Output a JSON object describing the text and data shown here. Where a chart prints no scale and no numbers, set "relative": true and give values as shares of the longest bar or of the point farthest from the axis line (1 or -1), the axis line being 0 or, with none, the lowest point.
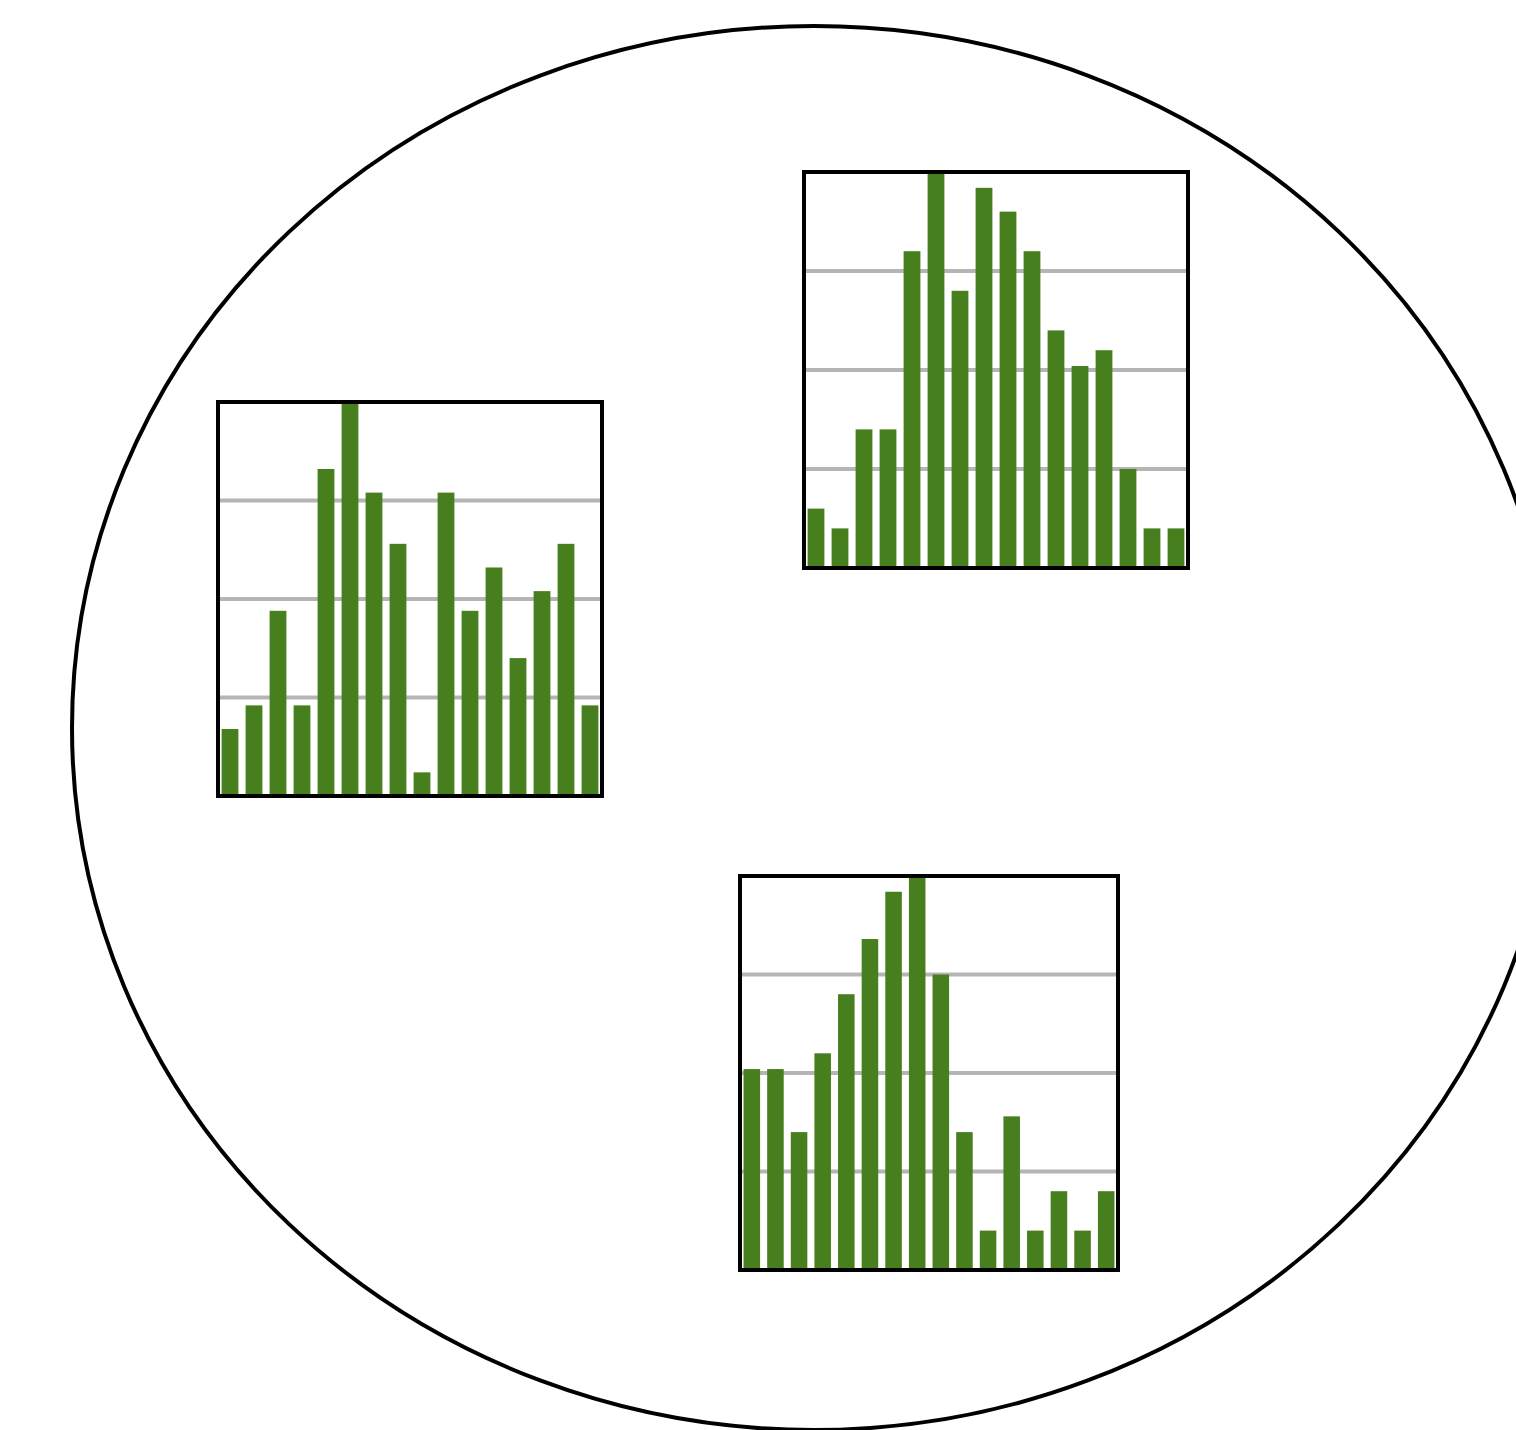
{
  "chart_data": [
    {
      "type": "bar",
      "relative": true,
      "grid": true,
      "categories": [
        null,
        null,
        null,
        null,
        null,
        null,
        null,
        null,
        null,
        null,
        null,
        null,
        null,
        null,
        null,
        null
      ],
      "color": "#477f1e",
      "values": [
        0.17,
        0.23,
        0.47,
        0.23,
        0.83,
        1,
        0.77,
        0.64,
        0.06,
        0.77,
        0.47,
        0.58,
        0.35,
        0.52,
        0.64,
        0.23
      ]
    },
    {
      "type": "bar",
      "relative": true,
      "grid": true,
      "categories": [
        null,
        null,
        null,
        null,
        null,
        null,
        null,
        null,
        null,
        null,
        null,
        null,
        null,
        null,
        null,
        null
      ],
      "color": "#477f1e",
      "values": [
        0.15,
        0.1,
        0.35,
        0.35,
        0.8,
        1,
        0.7,
        0.96,
        0.9,
        0.8,
        0.6,
        0.51,
        0.55,
        0.25,
        0.1,
        0.1
      ]
    },
    {
      "type": "bar",
      "relative": true,
      "grid": true,
      "categories": [
        null,
        null,
        null,
        null,
        null,
        null,
        null,
        null,
        null,
        null,
        null,
        null,
        null,
        null,
        null,
        null
      ],
      "color": "#477f1e",
      "values": [
        0.51,
        0.51,
        0.35,
        0.55,
        0.7,
        0.84,
        0.96,
        1,
        0.75,
        0.35,
        0.1,
        0.39,
        0.1,
        0.2,
        0.1,
        0.2
      ]
    }
  ]
}
